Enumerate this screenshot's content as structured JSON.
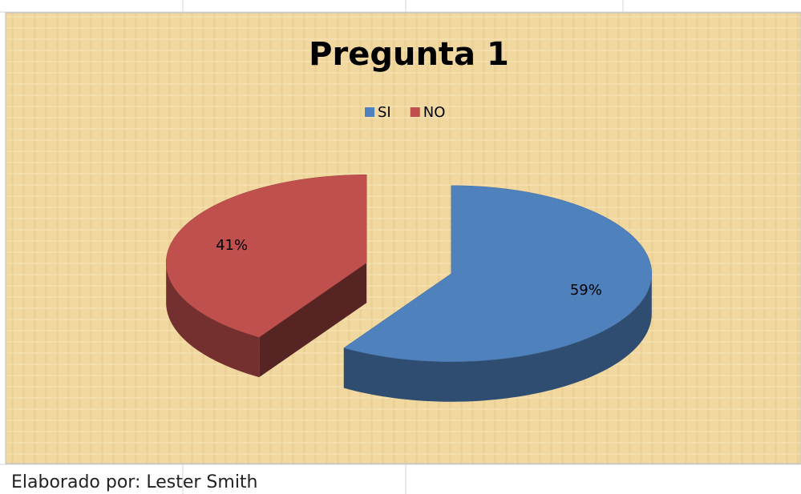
{
  "chart_data": {
    "type": "pie",
    "title": "Pregunta 1",
    "categories": [
      "SI",
      "NO"
    ],
    "values": [
      59,
      41
    ],
    "value_labels": [
      "59%",
      "41%"
    ],
    "colors": [
      "#4f81bd",
      "#c0504d"
    ],
    "legend": "top"
  },
  "footer": "Elaborado por: Lester Smith"
}
